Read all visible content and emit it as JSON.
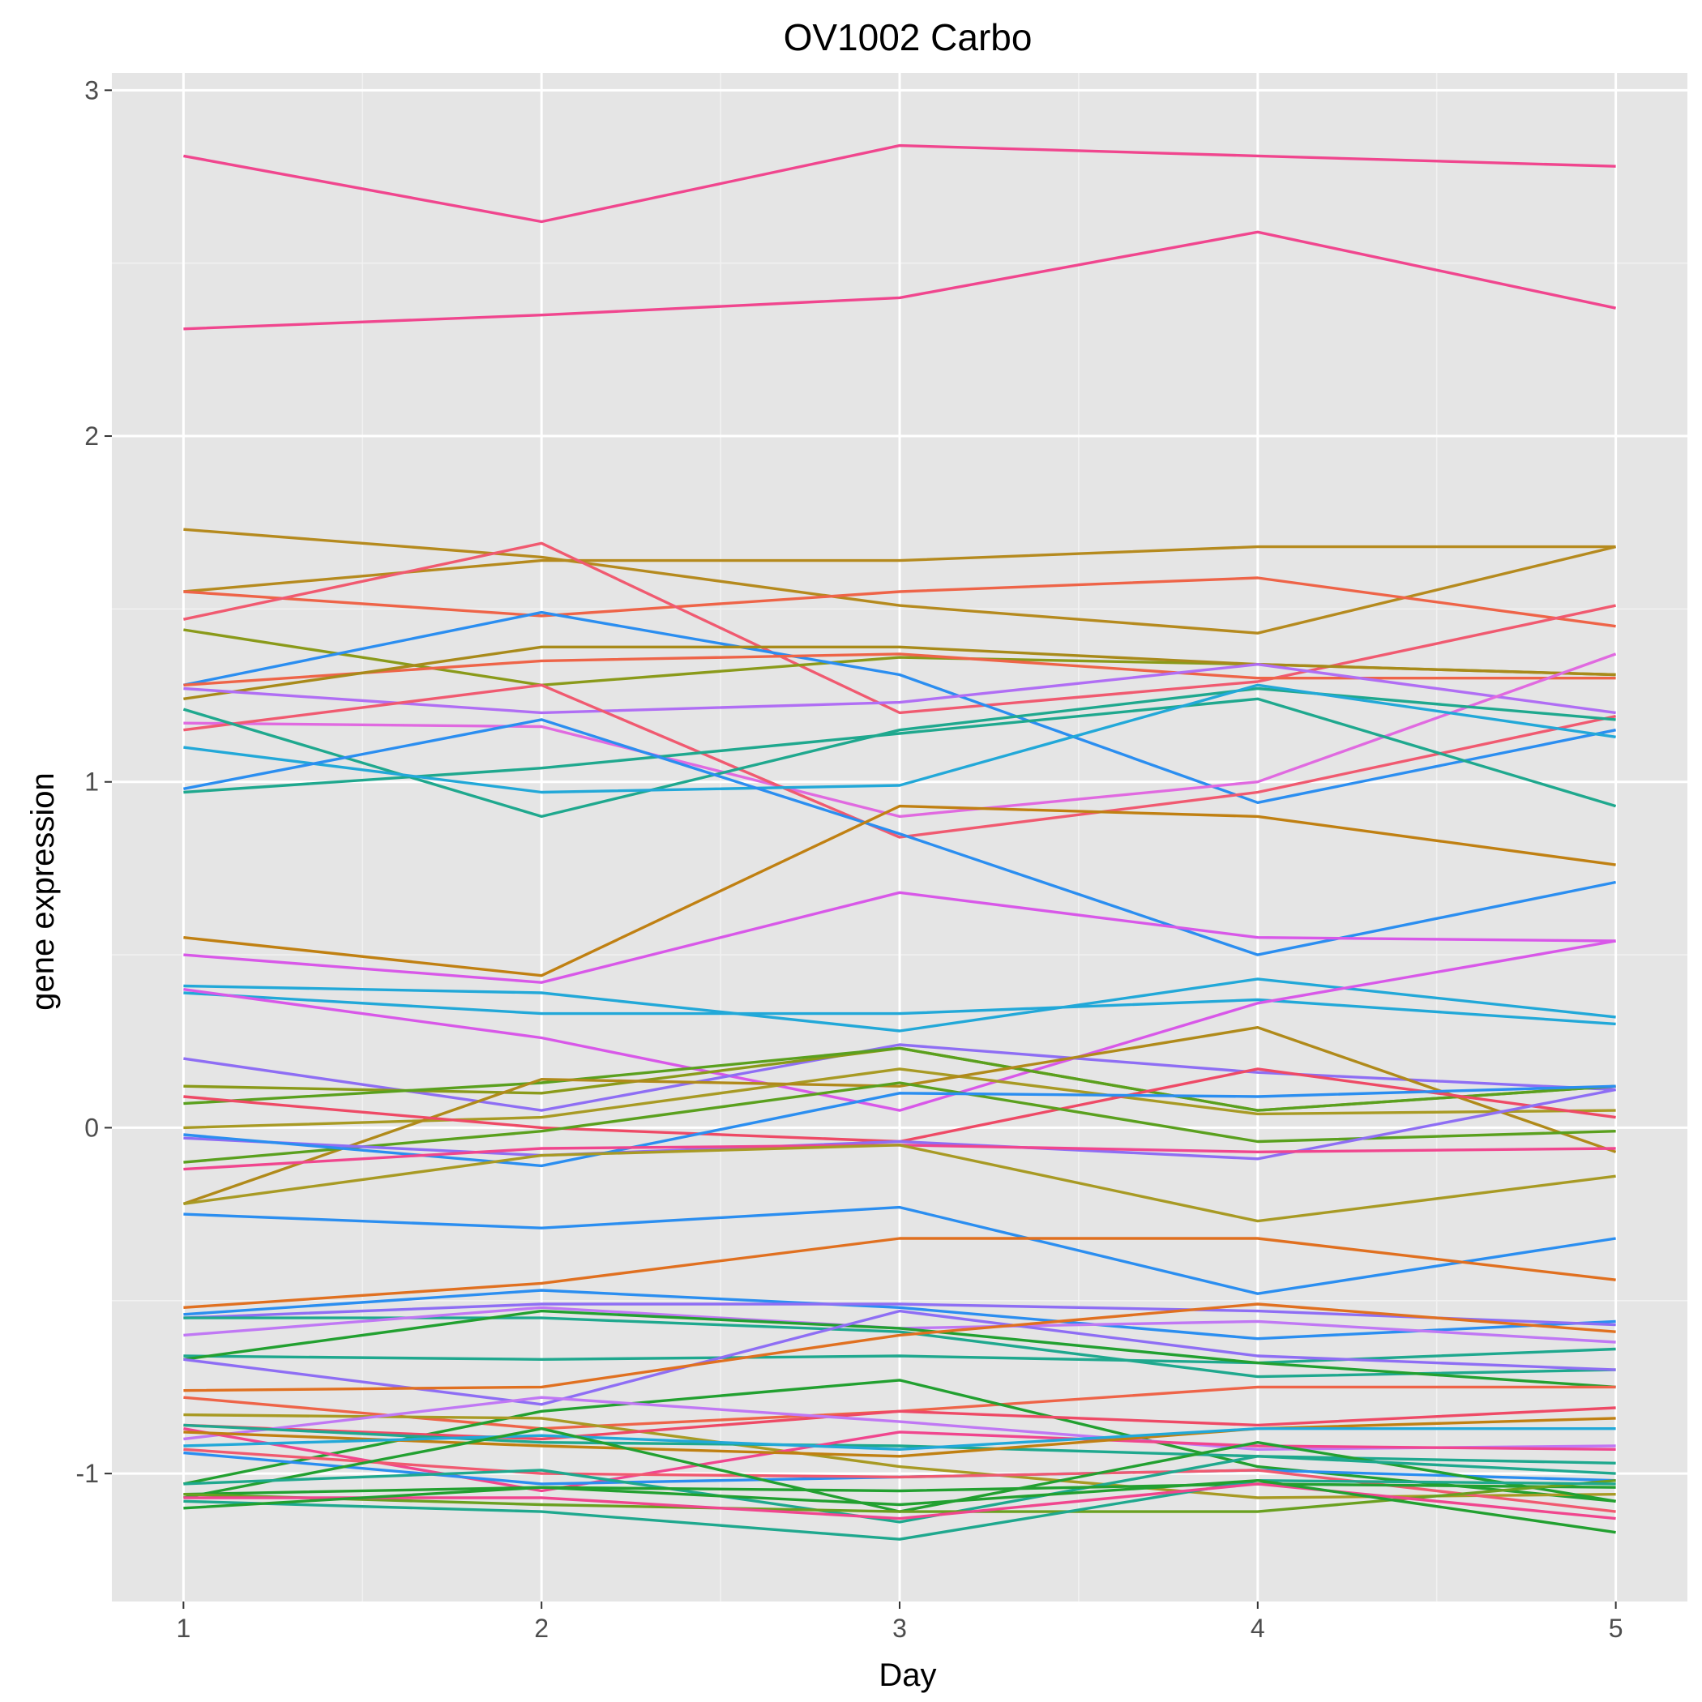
{
  "chart_data": {
    "type": "line",
    "title": "OV1002 Carbo",
    "xlabel": "Day",
    "ylabel": "gene expression",
    "x": [
      1,
      2,
      3,
      4,
      5
    ],
    "xlim": [
      0.8,
      5.2
    ],
    "ylim": [
      -1.37,
      3.05
    ],
    "xticks": [
      1,
      2,
      3,
      4,
      5
    ],
    "yticks": [
      -1,
      0,
      1,
      2,
      3
    ],
    "xtick_labels": [
      "1",
      "2",
      "3",
      "4",
      "5"
    ],
    "ytick_labels": [
      "-1",
      "0",
      "1",
      "2",
      "3"
    ],
    "grid": true,
    "legend": "none",
    "panel_background": "#e5e5e5",
    "series": [
      {
        "color": "#f0468e",
        "values": [
          2.81,
          2.62,
          2.84,
          2.81,
          2.78
        ]
      },
      {
        "color": "#f0468e",
        "values": [
          2.31,
          2.35,
          2.4,
          2.59,
          2.37
        ]
      },
      {
        "color": "#b58a1e",
        "values": [
          1.73,
          1.65,
          1.51,
          1.43,
          1.68
        ]
      },
      {
        "color": "#b58a1e",
        "values": [
          1.55,
          1.64,
          1.64,
          1.68,
          1.68
        ]
      },
      {
        "color": "#ee6448",
        "values": [
          1.55,
          1.48,
          1.55,
          1.59,
          1.45
        ]
      },
      {
        "color": "#f05a70",
        "values": [
          1.47,
          1.69,
          1.2,
          1.29,
          1.51
        ]
      },
      {
        "color": "#8a9a1a",
        "values": [
          1.44,
          1.28,
          1.36,
          1.34,
          1.31
        ]
      },
      {
        "color": "#2b8ef0",
        "values": [
          1.28,
          1.49,
          1.31,
          0.94,
          1.15
        ]
      },
      {
        "color": "#ee6448",
        "values": [
          1.28,
          1.35,
          1.37,
          1.3,
          1.3
        ]
      },
      {
        "color": "#a88a1a",
        "values": [
          1.24,
          1.39,
          1.39,
          1.34,
          1.31
        ]
      },
      {
        "color": "#b06ef4",
        "values": [
          1.27,
          1.2,
          1.23,
          1.34,
          1.2
        ]
      },
      {
        "color": "#e06ae0",
        "values": [
          1.17,
          1.16,
          0.9,
          1.0,
          1.37
        ]
      },
      {
        "color": "#f05a70",
        "values": [
          1.15,
          1.28,
          0.84,
          0.97,
          1.19
        ]
      },
      {
        "color": "#1fa88e",
        "values": [
          1.21,
          0.9,
          1.15,
          1.27,
          1.18
        ]
      },
      {
        "color": "#1fa88e",
        "values": [
          0.97,
          1.04,
          1.14,
          1.24,
          0.93
        ]
      },
      {
        "color": "#22a8d8",
        "values": [
          1.1,
          0.97,
          0.99,
          1.28,
          1.13
        ]
      },
      {
        "color": "#2b8ef0",
        "values": [
          0.98,
          1.18,
          0.85,
          0.5,
          0.71
        ]
      },
      {
        "color": "#c08012",
        "values": [
          0.55,
          0.44,
          0.93,
          0.9,
          0.76
        ]
      },
      {
        "color": "#d858e8",
        "values": [
          0.5,
          0.42,
          0.68,
          0.55,
          0.54
        ]
      },
      {
        "color": "#22a8d8",
        "values": [
          0.41,
          0.39,
          0.28,
          0.43,
          0.32
        ]
      },
      {
        "color": "#22a8d8",
        "values": [
          0.39,
          0.33,
          0.33,
          0.37,
          0.3
        ]
      },
      {
        "color": "#d858e8",
        "values": [
          0.4,
          0.26,
          0.05,
          0.36,
          0.54
        ]
      },
      {
        "color": "#8e6ef4",
        "values": [
          0.2,
          0.05,
          0.24,
          0.16,
          0.11
        ]
      },
      {
        "color": "#8a9a1a",
        "values": [
          0.12,
          0.1,
          0.23,
          0.05,
          0.12
        ]
      },
      {
        "color": "#5aa01e",
        "values": [
          0.07,
          0.13,
          0.23,
          0.05,
          0.12
        ]
      },
      {
        "color": "#a89a24",
        "values": [
          0.0,
          0.03,
          0.17,
          0.04,
          0.05
        ]
      },
      {
        "color": "#b08a1a",
        "values": [
          -0.22,
          0.14,
          0.12,
          0.29,
          -0.07
        ]
      },
      {
        "color": "#ee4a66",
        "values": [
          0.09,
          0.0,
          -0.04,
          0.17,
          0.03
        ]
      },
      {
        "color": "#5aa01e",
        "values": [
          -0.1,
          -0.01,
          0.13,
          -0.04,
          -0.01
        ]
      },
      {
        "color": "#8e6ef4",
        "values": [
          -0.03,
          -0.08,
          -0.04,
          -0.09,
          0.11
        ]
      },
      {
        "color": "#2b8ef0",
        "values": [
          -0.02,
          -0.11,
          0.1,
          0.09,
          0.12
        ]
      },
      {
        "color": "#f0468e",
        "values": [
          -0.12,
          -0.06,
          -0.05,
          -0.07,
          -0.06
        ]
      },
      {
        "color": "#a89a24",
        "values": [
          -0.22,
          -0.08,
          -0.05,
          -0.27,
          -0.14
        ]
      },
      {
        "color": "#2b8ef0",
        "values": [
          -0.25,
          -0.29,
          -0.23,
          -0.48,
          -0.32
        ]
      },
      {
        "color": "#e07020",
        "values": [
          -0.52,
          -0.45,
          -0.32,
          -0.32,
          -0.44
        ]
      },
      {
        "color": "#2b8ef0",
        "values": [
          -0.54,
          -0.47,
          -0.52,
          -0.61,
          -0.56
        ]
      },
      {
        "color": "#8e6ef4",
        "values": [
          -0.55,
          -0.51,
          -0.51,
          -0.53,
          -0.57
        ]
      },
      {
        "color": "#1fa88e",
        "values": [
          -0.55,
          -0.55,
          -0.59,
          -0.72,
          -0.7
        ]
      },
      {
        "color": "#c078f4",
        "values": [
          -0.6,
          -0.52,
          -0.58,
          -0.56,
          -0.62
        ]
      },
      {
        "color": "#1fa88e",
        "values": [
          -0.66,
          -0.67,
          -0.66,
          -0.68,
          -0.64
        ]
      },
      {
        "color": "#22a030",
        "values": [
          -0.67,
          -0.53,
          -0.58,
          -0.68,
          -0.75
        ]
      },
      {
        "color": "#8e6ef4",
        "values": [
          -0.67,
          -0.8,
          -0.53,
          -0.66,
          -0.7
        ]
      },
      {
        "color": "#e07020",
        "values": [
          -0.76,
          -0.75,
          -0.6,
          -0.51,
          -0.59
        ]
      },
      {
        "color": "#ee6448",
        "values": [
          -0.78,
          -0.87,
          -0.82,
          -0.75,
          -0.75
        ]
      },
      {
        "color": "#22a030",
        "values": [
          -1.03,
          -0.82,
          -0.73,
          -0.98,
          -1.08
        ]
      },
      {
        "color": "#a89a24",
        "values": [
          -0.83,
          -0.84,
          -0.98,
          -1.07,
          -1.06
        ]
      },
      {
        "color": "#ee4a66",
        "values": [
          -0.86,
          -0.9,
          -0.82,
          -0.86,
          -0.81
        ]
      },
      {
        "color": "#c078f4",
        "values": [
          -0.9,
          -0.78,
          -0.85,
          -0.93,
          -0.92
        ]
      },
      {
        "color": "#1fa88e",
        "values": [
          -0.86,
          -0.91,
          -0.92,
          -0.95,
          -0.97
        ]
      },
      {
        "color": "#f0468e",
        "values": [
          -0.87,
          -1.05,
          -0.88,
          -0.92,
          -0.93
        ]
      },
      {
        "color": "#c08012",
        "values": [
          -0.88,
          -0.92,
          -0.95,
          -0.87,
          -0.84
        ]
      },
      {
        "color": "#22a8d8",
        "values": [
          -0.92,
          -0.89,
          -0.93,
          -0.87,
          -0.87
        ]
      },
      {
        "color": "#2b8ef0",
        "values": [
          -0.94,
          -1.03,
          -1.01,
          -0.99,
          -1.02
        ]
      },
      {
        "color": "#f05a70",
        "values": [
          -0.93,
          -1.0,
          -1.01,
          -0.99,
          -1.11
        ]
      },
      {
        "color": "#22a030",
        "values": [
          -1.07,
          -0.87,
          -1.11,
          -0.91,
          -1.08
        ]
      },
      {
        "color": "#1fa88e",
        "values": [
          -1.03,
          -0.99,
          -1.14,
          -0.95,
          -1.0
        ]
      },
      {
        "color": "#22a030",
        "values": [
          -1.06,
          -1.04,
          -1.05,
          -1.03,
          -1.04
        ]
      },
      {
        "color": "#6aa020",
        "values": [
          -1.06,
          -1.09,
          -1.11,
          -1.11,
          -1.02
        ]
      },
      {
        "color": "#1fa88e",
        "values": [
          -1.08,
          -1.11,
          -1.19,
          -1.02,
          -1.03
        ]
      },
      {
        "color": "#f0468e",
        "values": [
          -1.07,
          -1.07,
          -1.13,
          -1.03,
          -1.13
        ]
      },
      {
        "color": "#22a030",
        "values": [
          -1.1,
          -1.04,
          -1.09,
          -1.02,
          -1.17
        ]
      }
    ]
  }
}
